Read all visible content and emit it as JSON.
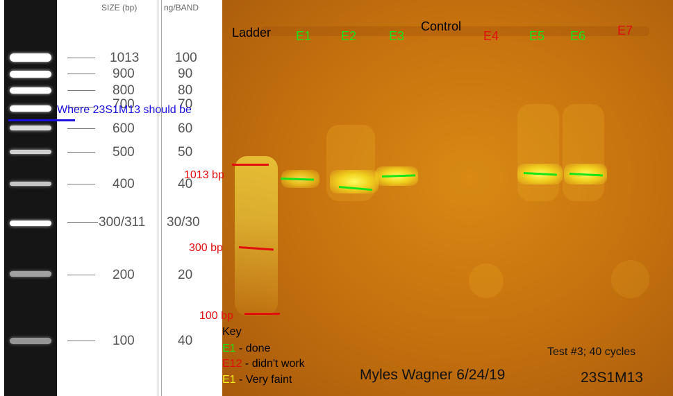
{
  "ladder": {
    "header_size": "SIZE (bp)",
    "header_ng": "ng/BAND",
    "rows": [
      {
        "size": "1013",
        "ng": "100"
      },
      {
        "size": "900",
        "ng": "90"
      },
      {
        "size": "800",
        "ng": "80"
      },
      {
        "size": "700",
        "ng": "70"
      },
      {
        "size": "600",
        "ng": "60"
      },
      {
        "size": "500",
        "ng": "50"
      },
      {
        "size": "400",
        "ng": "40"
      },
      {
        "size": "300/311",
        "ng": "30/30"
      },
      {
        "size": "200",
        "ng": "20"
      },
      {
        "size": "100",
        "ng": "40"
      }
    ]
  },
  "annotation": {
    "expected_position": "Where 23S1M13 should be",
    "color": "#1a10e0"
  },
  "gel": {
    "lane_labels": [
      {
        "text": "Ladder",
        "color": "#000000"
      },
      {
        "text": "E1",
        "color": "#19e419"
      },
      {
        "text": "E2",
        "color": "#19e419"
      },
      {
        "text": "E3",
        "color": "#19e419"
      },
      {
        "text": "Control",
        "color": "#000000"
      },
      {
        "text": "E4",
        "color": "#e20d0d"
      },
      {
        "text": "E5",
        "color": "#19e419"
      },
      {
        "text": "E6",
        "color": "#19e419"
      },
      {
        "text": "E7",
        "color": "#e20d0d"
      }
    ],
    "markers": [
      "1013 bp",
      "300 bp",
      "100 bp"
    ],
    "key": {
      "title": "Key",
      "items": [
        {
          "code": "E1",
          "text": " - done",
          "color": "#19e419"
        },
        {
          "code": "E12",
          "text": " - didn't work",
          "color": "#e20d0d"
        },
        {
          "code": "E1",
          "text": " - Very faint",
          "color": "#f7f01a"
        }
      ]
    },
    "signature": "Myles Wagner 6/24/19",
    "test_info": "Test #3; 40 cycles",
    "sample_id": "23S1M13",
    "colors": {
      "done": "#19e419",
      "failed": "#e20d0d",
      "faint": "#f7f01a"
    }
  }
}
